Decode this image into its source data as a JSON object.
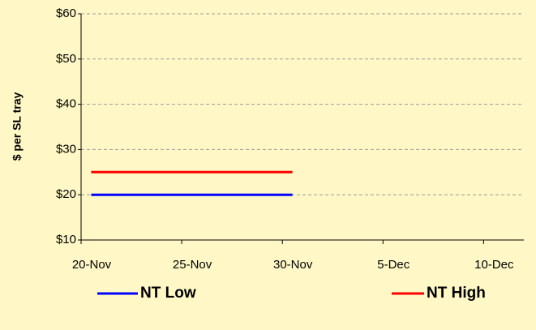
{
  "chart_data": {
    "type": "line",
    "y_label": "$ per SL tray",
    "x": [
      20.5,
      27.5,
      30.5
    ],
    "series": [
      {
        "name": "NT Low",
        "color": "#0000ff",
        "values": [
          20,
          20,
          20
        ]
      },
      {
        "name": "NT High",
        "color": "#ff0000",
        "values": [
          25,
          25,
          25
        ]
      }
    ],
    "xlim": [
      20,
      42
    ],
    "xticks": [
      {
        "value": 20,
        "label": "20-Nov"
      },
      {
        "value": 25,
        "label": "25-Nov"
      },
      {
        "value": 30,
        "label": "30-Nov"
      },
      {
        "value": 35,
        "label": "5-Dec"
      },
      {
        "value": 40,
        "label": "10-Dec"
      }
    ],
    "ylim": [
      10,
      60
    ],
    "yticks": [
      {
        "value": 10,
        "label": "$10"
      },
      {
        "value": 20,
        "label": "$20"
      },
      {
        "value": 30,
        "label": "$30"
      },
      {
        "value": 40,
        "label": "$40"
      },
      {
        "value": 50,
        "label": "$50"
      },
      {
        "value": 60,
        "label": "$60"
      }
    ],
    "grid": true,
    "legend": "bottom"
  }
}
